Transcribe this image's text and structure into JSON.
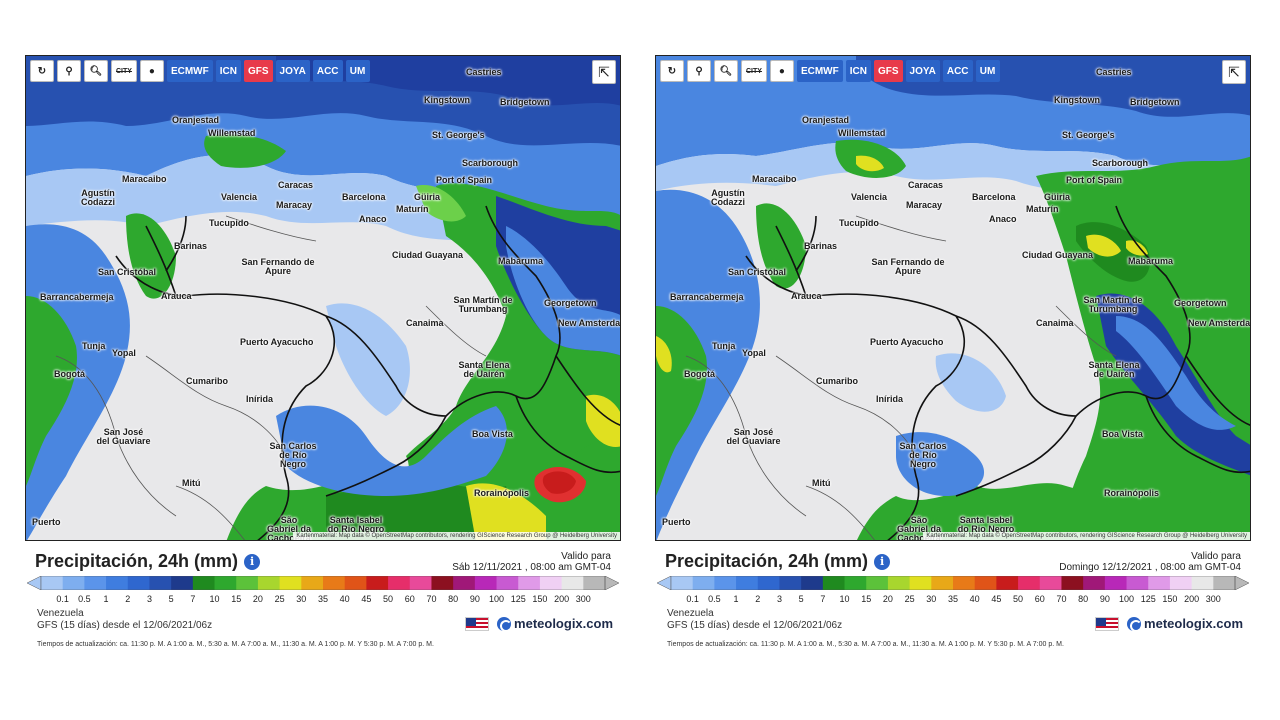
{
  "panels": [
    {
      "id": "left",
      "toolbar": {
        "buttons": [
          {
            "name": "refresh",
            "icon": "refresh-icon",
            "glyph": "↻"
          },
          {
            "name": "location",
            "icon": "pin-icon",
            "glyph": "⚲"
          },
          {
            "name": "zoom",
            "icon": "zoom-icon",
            "glyph": "🔍︎"
          },
          {
            "name": "city",
            "label": "CITY"
          },
          {
            "name": "marker",
            "icon": "dot-icon",
            "glyph": "●"
          }
        ],
        "models": [
          "ECMWF",
          "ICN",
          "GFS",
          "JOYA",
          "ACC",
          "UM"
        ],
        "active_model": "GFS",
        "share_icon": "share-icon"
      },
      "attribution": "Kartenmaterial: Map data © OpenStreetMap contributors, rendering GIScience Research Group @ Heidelberg University",
      "title": "Precipitación, 24h (mm)",
      "valid_label": "Valido para",
      "valid_date": "Sáb 12/11/2021 , 08:00 am GMT-04",
      "region": "Venezuela",
      "model_run": "GFS (15 días) desde el 12/06/2021/06z",
      "brand": "meteologix.com",
      "updates": "Tiempos de actualización: ca. 11:30 p. M. A 1:00 a. M., 5:30 a. M. A 7:00 a. M., 11:30 a. M. A 1:00 p. M. Y 5:30 p. M. A 7:00 p. M."
    },
    {
      "id": "right",
      "toolbar": {
        "buttons": [
          {
            "name": "refresh",
            "icon": "refresh-icon",
            "glyph": "↻"
          },
          {
            "name": "location",
            "icon": "pin-icon",
            "glyph": "⚲"
          },
          {
            "name": "zoom",
            "icon": "zoom-icon",
            "glyph": "🔍︎"
          },
          {
            "name": "city",
            "label": "CITY"
          },
          {
            "name": "marker",
            "icon": "dot-icon",
            "glyph": "●"
          }
        ],
        "models": [
          "ECMWF",
          "ICN",
          "GFS",
          "JOYA",
          "ACC",
          "UM"
        ],
        "active_model": "GFS",
        "share_icon": "share-icon"
      },
      "attribution": "Kartenmaterial: Map data © OpenStreetMap contributors, rendering GIScience Research Group @ Heidelberg University",
      "title": "Precipitación, 24h (mm)",
      "valid_label": "Valido para",
      "valid_date": "Domingo 12/12/2021 , 08:00 am GMT-04",
      "region": "Venezuela",
      "model_run": "GFS (15 días) desde el 12/06/2021/06z",
      "brand": "meteologix.com",
      "updates": "Tiempos de actualización: ca. 11:30 p. M. A 1:00 a. M., 5:30 a. M. A 7:00 a. M., 11:30 a. M. A 1:00 p. M. Y 5:30 p. M. A 7:00 p. M."
    }
  ],
  "cities": [
    "Castries",
    "Kingstown",
    "Bridgetown",
    "Oranjestad",
    "Willemstad",
    "St. George's",
    "Scarborough",
    "Port of Spain",
    "Maracaibo",
    "Caracas",
    "Barcelona",
    "Valencia",
    "Maracay",
    "Güiria",
    "Maturín",
    "Anaco",
    "Agustín Codazzi",
    "Barinas",
    "Tucupido",
    "San Fernando de Apure",
    "Ciudad Guayana",
    "Mabaruma",
    "San Cristóbal",
    "Arauca",
    "Georgetown",
    "San Martín de Turumbang",
    "New Amsterdam",
    "Barrancabermeja",
    "Canaima",
    "Puerto Ayacucho",
    "Tunja",
    "Yopal",
    "Santa Elena de Uairén",
    "Bogotá",
    "Cumaribo",
    "Inírida",
    "Boa Vista",
    "San José del Guaviare",
    "San Carlos de Río Negro",
    "Mitú",
    "Rorainópolis",
    "São Gabriel da Cachoeira",
    "Santa Isabel do Rio Negro",
    "Puerto"
  ],
  "legend": {
    "labels": [
      "0.1",
      "0.5",
      "1",
      "2",
      "3",
      "5",
      "7",
      "10",
      "15",
      "20",
      "25",
      "30",
      "35",
      "40",
      "45",
      "50",
      "60",
      "70",
      "80",
      "90",
      "100",
      "125",
      "150",
      "200",
      "300"
    ],
    "colors": [
      "#a8c8f4",
      "#7eaeef",
      "#5b94ea",
      "#3f7ddf",
      "#2f67cf",
      "#2751b0",
      "#1e3a8c",
      "#1f8a1f",
      "#2ea82e",
      "#5cc23a",
      "#a8d62e",
      "#e0e020",
      "#e8a818",
      "#e87a18",
      "#e05418",
      "#c81c1c",
      "#e62e6a",
      "#e84a9a",
      "#8c1020",
      "#a01878",
      "#b828b8",
      "#c85ad2",
      "#e09ae8",
      "#f0d0f4",
      "#e8e8e8",
      "#b8b8b8"
    ]
  },
  "colors": {
    "dry": "#e8e8ea",
    "light_blue": "#a8c8f4",
    "mid_blue": "#4a86e0",
    "deep_blue": "#1f3fa0",
    "green": "#2ea82e",
    "light_green": "#6cd04a",
    "yellow": "#e0e020",
    "red": "#e03030",
    "active_model": "#e83a4a",
    "toolbar": "#2b63c7"
  }
}
